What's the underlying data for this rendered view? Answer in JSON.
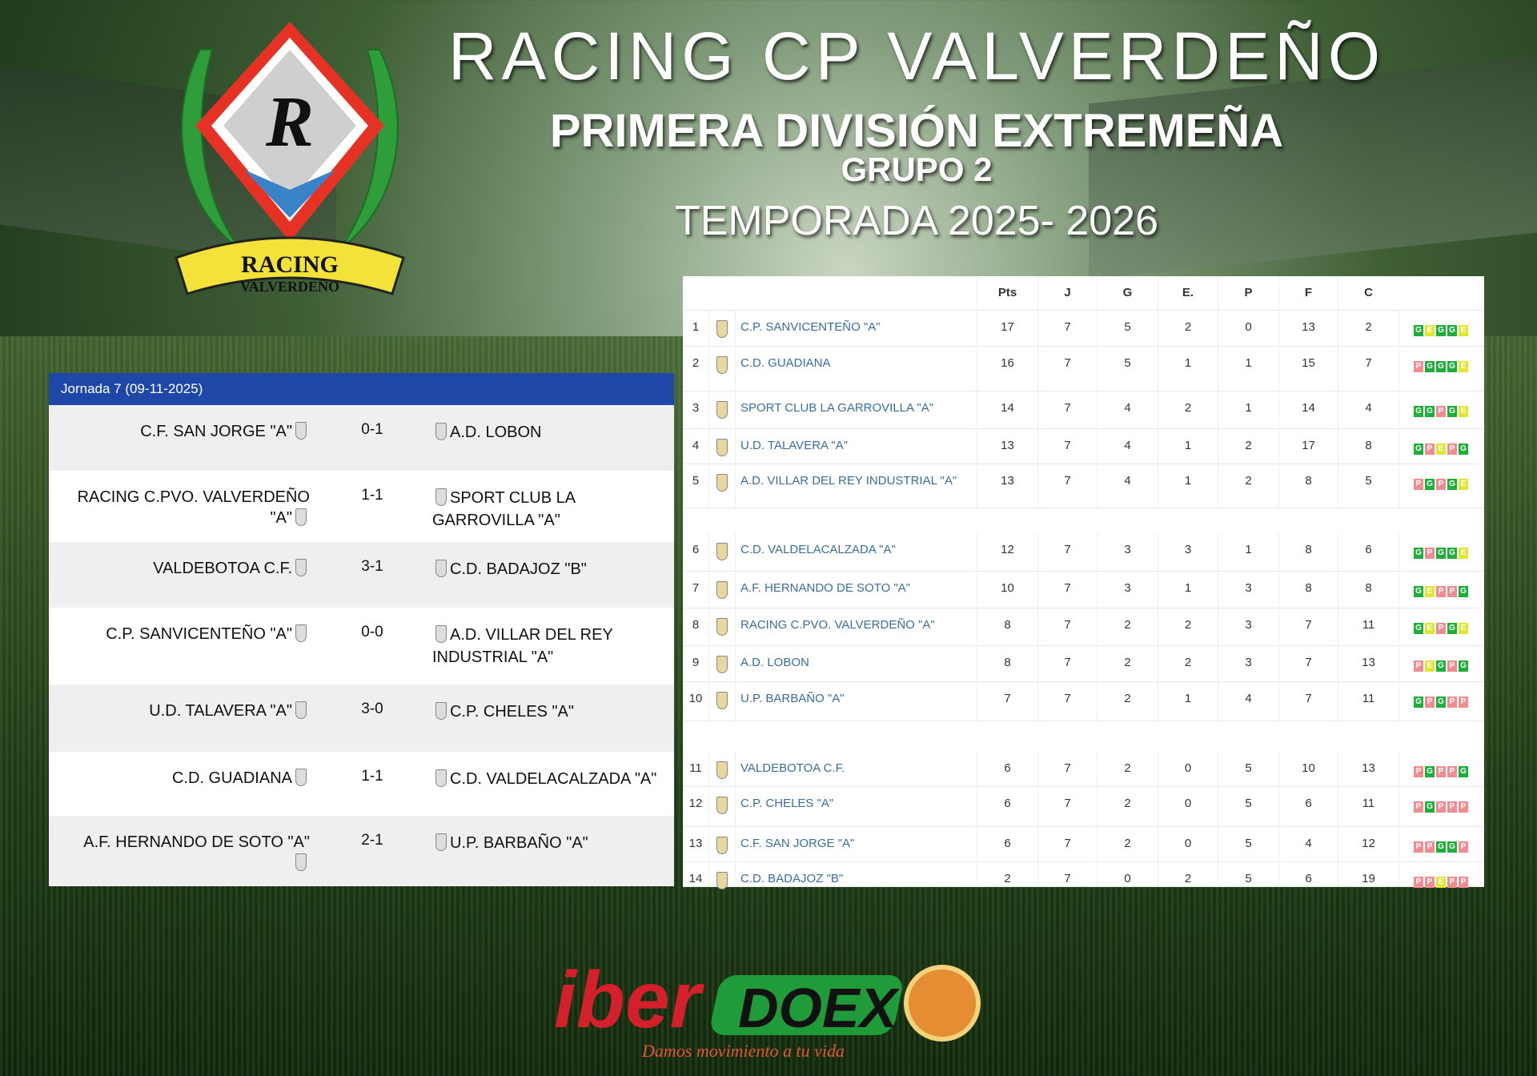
{
  "header": {
    "club": "RACING CP VALVERDEÑO",
    "league": "PRIMERA DIVISIÓN EXTREMEÑA",
    "group": "GRUPO 2",
    "season": "TEMPORADA 2025- 2026"
  },
  "logo": {
    "text_top": "RACING",
    "text_bottom": "VALVERDEÑO",
    "monogram": "R"
  },
  "matches": {
    "title": "Jornada 7 (09-11-2025)",
    "rows": [
      {
        "home": "C.F. SAN JORGE \"A\"",
        "score": "0-1",
        "away": "A.D. LOBON"
      },
      {
        "home": "RACING C.PVO. VALVERDEÑO \"A\"",
        "score": "1-1",
        "away": "SPORT CLUB LA GARROVILLA \"A\""
      },
      {
        "home": "VALDEBOTOA C.F.",
        "score": "3-1",
        "away": "C.D. BADAJOZ \"B\""
      },
      {
        "home": "C.P. SANVICENTEÑO \"A\"",
        "score": "0-0",
        "away": "A.D. VILLAR DEL REY INDUSTRIAL \"A\""
      },
      {
        "home": "U.D. TALAVERA \"A\"",
        "score": "3-0",
        "away": "C.P. CHELES \"A\""
      },
      {
        "home": "C.D. GUADIANA",
        "score": "1-1",
        "away": "C.D. VALDELACALZADA \"A\""
      },
      {
        "home": "A.F. HERNANDO DE SOTO \"A\"",
        "score": "2-1",
        "away": "U.P. BARBAÑO \"A\""
      }
    ]
  },
  "standings": {
    "columns": [
      "Pts",
      "J",
      "G",
      "E.",
      "P",
      "F",
      "C"
    ],
    "rows": [
      {
        "pos": "1",
        "team": "C.P. SANVICENTEÑO \"A\"",
        "pts": "17",
        "j": "7",
        "g": "5",
        "e": "2",
        "p": "0",
        "f": "13",
        "c": "2",
        "form": [
          "G",
          "E",
          "G",
          "G",
          "E"
        ]
      },
      {
        "pos": "2",
        "team": "C.D. GUADIANA",
        "pts": "16",
        "j": "7",
        "g": "5",
        "e": "1",
        "p": "1",
        "f": "15",
        "c": "7",
        "form": [
          "P",
          "G",
          "G",
          "G",
          "E"
        ]
      },
      {
        "pos": "3",
        "team": "SPORT CLUB LA GARROVILLA \"A\"",
        "pts": "14",
        "j": "7",
        "g": "4",
        "e": "2",
        "p": "1",
        "f": "14",
        "c": "4",
        "form": [
          "G",
          "G",
          "P",
          "G",
          "E"
        ]
      },
      {
        "pos": "4",
        "team": "U.D. TALAVERA \"A\"",
        "pts": "13",
        "j": "7",
        "g": "4",
        "e": "1",
        "p": "2",
        "f": "17",
        "c": "8",
        "form": [
          "G",
          "P",
          "E",
          "P",
          "G"
        ]
      },
      {
        "pos": "5",
        "team": "A.D. VILLAR DEL REY INDUSTRIAL \"A\"",
        "pts": "13",
        "j": "7",
        "g": "4",
        "e": "1",
        "p": "2",
        "f": "8",
        "c": "5",
        "form": [
          "P",
          "G",
          "P",
          "G",
          "E"
        ]
      },
      {
        "pos": "6",
        "team": "C.D. VALDELACALZADA \"A\"",
        "pts": "12",
        "j": "7",
        "g": "3",
        "e": "3",
        "p": "1",
        "f": "8",
        "c": "6",
        "form": [
          "G",
          "P",
          "G",
          "G",
          "E"
        ]
      },
      {
        "pos": "7",
        "team": "A.F. HERNANDO DE SOTO \"A\"",
        "pts": "10",
        "j": "7",
        "g": "3",
        "e": "1",
        "p": "3",
        "f": "8",
        "c": "8",
        "form": [
          "G",
          "E",
          "P",
          "P",
          "G"
        ]
      },
      {
        "pos": "8",
        "team": "RACING C.PVO. VALVERDEÑO \"A\"",
        "pts": "8",
        "j": "7",
        "g": "2",
        "e": "2",
        "p": "3",
        "f": "7",
        "c": "11",
        "form": [
          "G",
          "E",
          "P",
          "G",
          "E"
        ]
      },
      {
        "pos": "9",
        "team": "A.D. LOBON",
        "pts": "8",
        "j": "7",
        "g": "2",
        "e": "2",
        "p": "3",
        "f": "7",
        "c": "13",
        "form": [
          "P",
          "E",
          "G",
          "P",
          "G"
        ]
      },
      {
        "pos": "10",
        "team": "U.P. BARBAÑO \"A\"",
        "pts": "7",
        "j": "7",
        "g": "2",
        "e": "1",
        "p": "4",
        "f": "7",
        "c": "11",
        "form": [
          "G",
          "P",
          "G",
          "P",
          "P"
        ]
      },
      {
        "pos": "11",
        "team": "VALDEBOTOA C.F.",
        "pts": "6",
        "j": "7",
        "g": "2",
        "e": "0",
        "p": "5",
        "f": "10",
        "c": "13",
        "form": [
          "P",
          "G",
          "P",
          "P",
          "G"
        ]
      },
      {
        "pos": "12",
        "team": "C.P. CHELES \"A\"",
        "pts": "6",
        "j": "7",
        "g": "2",
        "e": "0",
        "p": "5",
        "f": "6",
        "c": "11",
        "form": [
          "P",
          "G",
          "P",
          "P",
          "P"
        ]
      },
      {
        "pos": "13",
        "team": "C.F. SAN JORGE \"A\"",
        "pts": "6",
        "j": "7",
        "g": "2",
        "e": "0",
        "p": "5",
        "f": "4",
        "c": "12",
        "form": [
          "P",
          "P",
          "G",
          "G",
          "P"
        ]
      },
      {
        "pos": "14",
        "team": "C.D. BADAJOZ \"B\"",
        "pts": "2",
        "j": "7",
        "g": "0",
        "e": "2",
        "p": "5",
        "f": "6",
        "c": "19",
        "form": [
          "P",
          "P",
          "E",
          "P",
          "P"
        ]
      }
    ]
  },
  "sponsor": {
    "name_a": "iber",
    "name_b": "DOEX",
    "slogan": "Damos movimiento a tu vida"
  },
  "colors": {
    "header_blue": "#1f47a8",
    "win": "#1fae3a",
    "draw": "#e1e635",
    "loss": "#ee8c92",
    "link": "#3b6d9c"
  }
}
